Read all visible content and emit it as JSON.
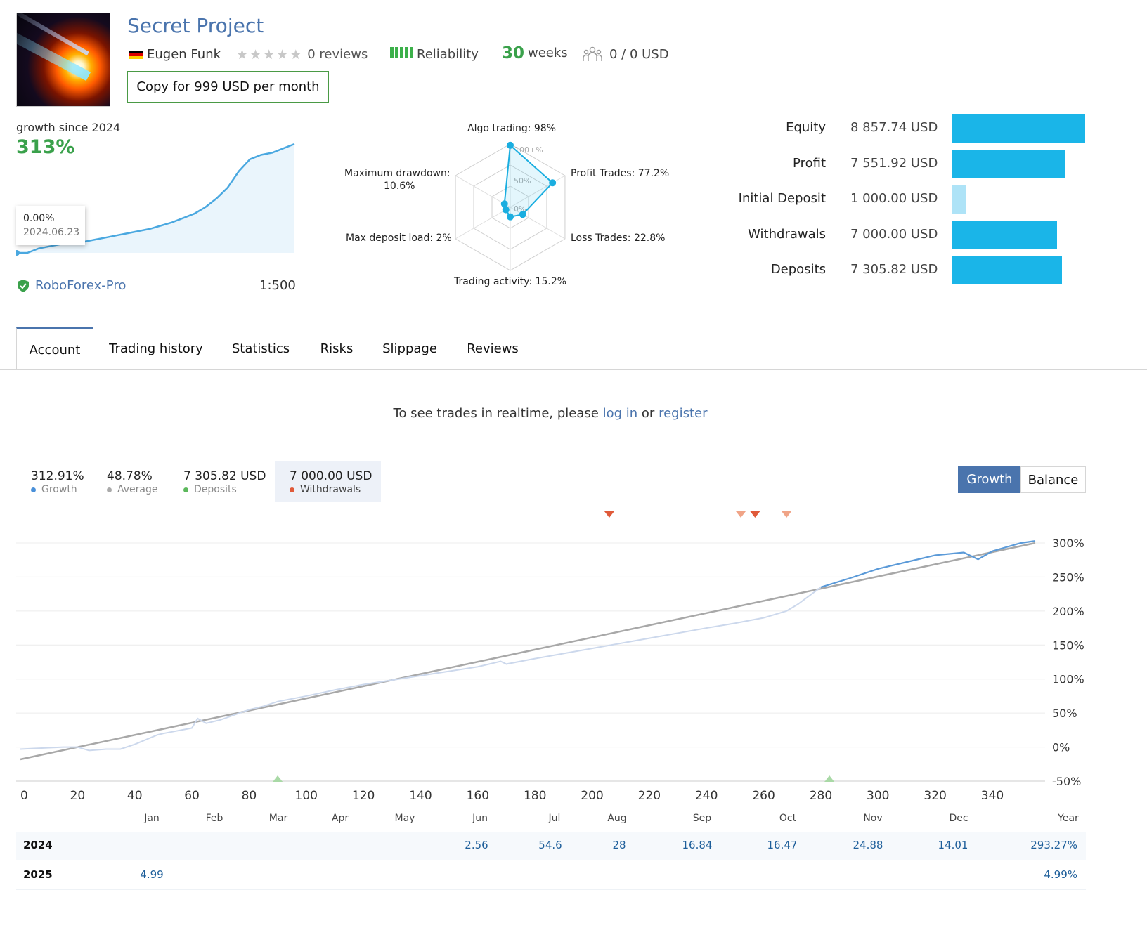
{
  "header": {
    "title": "Secret Project",
    "author": "Eugen Funk",
    "reviews": "0 reviews",
    "reliability": "Reliability",
    "weeks_value": "30",
    "weeks_unit": "weeks",
    "subscribers": "0 / 0 USD",
    "copy_button": "Copy for 999 USD per month"
  },
  "summary": {
    "growth_label": "growth since 2024",
    "growth_value": "313%",
    "tooltip_value": "0.00%",
    "tooltip_date": "2024.06.23",
    "broker": "RoboForex-Pro",
    "leverage": "1:500",
    "sparkline": [
      0,
      0,
      4,
      6,
      8,
      9,
      10,
      12,
      14,
      16,
      18,
      20,
      22,
      25,
      28,
      32,
      36,
      42,
      50,
      60,
      75,
      86,
      90,
      92,
      96,
      100
    ]
  },
  "radar": {
    "labels": {
      "algo": "Algo trading: 98%",
      "profit_trades": "Profit Trades: 77.2%",
      "loss_trades": "Loss Trades: 22.8%",
      "activity": "Trading activity: 15.2%",
      "deposit_load": "Max deposit load: 2%",
      "drawdown_1": "Maximum drawdown:",
      "drawdown_2": "10.6%"
    },
    "scale_labels": [
      "100+%",
      "50%",
      "0%"
    ],
    "values": [
      98,
      77.2,
      22.8,
      15.2,
      2,
      10.6
    ]
  },
  "financials": [
    {
      "label": "Equity",
      "value": "8 857.74 USD",
      "amount": 8857.74,
      "color": "#1ab5e8"
    },
    {
      "label": "Profit",
      "value": "7 551.92 USD",
      "amount": 7551.92,
      "color": "#1ab5e8"
    },
    {
      "label": "Initial Deposit",
      "value": "1 000.00 USD",
      "amount": 1000.0,
      "color": "#aee3f7"
    },
    {
      "label": "Withdrawals",
      "value": "7 000.00 USD",
      "amount": 7000.0,
      "color": "#1ab5e8"
    },
    {
      "label": "Deposits",
      "value": "7 305.82 USD",
      "amount": 7305.82,
      "color": "#1ab5e8"
    }
  ],
  "tabs": [
    "Account",
    "Trading history",
    "Statistics",
    "Risks",
    "Slippage",
    "Reviews"
  ],
  "notice": {
    "prefix": "To see trades in realtime, please",
    "login": "log in",
    "or": "or",
    "register": "register"
  },
  "stats": [
    {
      "value": "312.91%",
      "label": "Growth",
      "color": "#4a90d9"
    },
    {
      "value": "48.78%",
      "label": "Average",
      "color": "#aaaaaa"
    },
    {
      "value": "7 305.82 USD",
      "label": "Deposits",
      "color": "#5cb85c"
    },
    {
      "value": "7 000.00 USD",
      "label": "Withdrawals",
      "color": "#e05a3a"
    }
  ],
  "toggle": {
    "growth": "Growth",
    "balance": "Balance"
  },
  "chart_data": {
    "type": "line",
    "x_ticks": [
      "0",
      "20",
      "40",
      "60",
      "80",
      "100",
      "120",
      "140",
      "160",
      "180",
      "200",
      "220",
      "240",
      "260",
      "280",
      "300",
      "320",
      "340"
    ],
    "y_ticks": [
      "300%",
      "250%",
      "200%",
      "150%",
      "100%",
      "50%",
      "0%",
      "-50%"
    ],
    "xlim": [
      0,
      355
    ],
    "ylim": [
      -50,
      300
    ],
    "series": [
      {
        "name": "Growth",
        "color": "#4a90d9",
        "x": [
          0,
          10,
          15,
          20,
          24,
          30,
          35,
          40,
          48,
          50,
          55,
          60,
          62,
          65,
          70,
          80,
          85,
          90,
          100,
          110,
          120,
          140,
          160,
          168,
          170,
          180,
          200,
          220,
          240,
          250,
          260,
          268,
          272,
          280,
          290,
          300,
          310,
          320,
          330,
          335,
          340,
          350,
          355
        ],
        "y": [
          -3,
          -1,
          0,
          0,
          -5,
          -3,
          -3,
          4,
          18,
          20,
          24,
          28,
          42,
          35,
          40,
          55,
          60,
          67,
          75,
          84,
          92,
          105,
          118,
          126,
          122,
          130,
          145,
          160,
          175,
          182,
          190,
          200,
          210,
          235,
          248,
          262,
          272,
          282,
          286,
          276,
          288,
          300,
          303
        ]
      },
      {
        "name": "Average",
        "color": "#aaaaaa",
        "x": [
          0,
          355
        ],
        "y": [
          -18,
          300
        ]
      }
    ],
    "deposit_markers_x": [
      90,
      283
    ],
    "withdrawal_markers_x": [
      206,
      252,
      257,
      268
    ],
    "months": [
      "Jan",
      "Feb",
      "Mar",
      "Apr",
      "May",
      "Jun",
      "Jul",
      "Aug",
      "Sep",
      "Oct",
      "Nov",
      "Dec",
      "Year"
    ]
  },
  "yearly": [
    {
      "year": "2024",
      "values": [
        "",
        "",
        "",
        "",
        "",
        "2.56",
        "54.6",
        "28",
        "16.84",
        "16.47",
        "24.88",
        "14.01",
        "293.27%"
      ]
    },
    {
      "year": "2025",
      "values": [
        "4.99",
        "",
        "",
        "",
        "",
        "",
        "",
        "",
        "",
        "",
        "",
        "",
        "4.99%"
      ]
    }
  ]
}
